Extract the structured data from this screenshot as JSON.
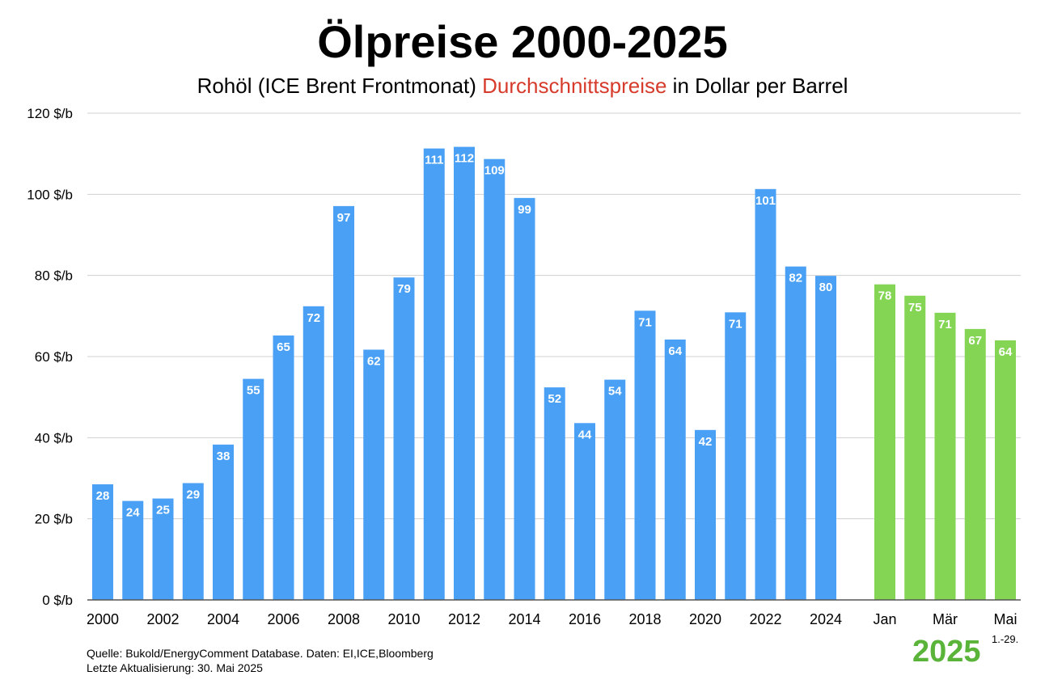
{
  "title": "Ölpreise 2000-2025",
  "subtitle": {
    "part1": "Rohöl (ICE Brent Frontmonat) ",
    "highlight": "Durchschnittspreise",
    "part2": " in Dollar per Barrel"
  },
  "source": {
    "line1": "Quelle: Bukold/EnergyComment Database. Daten: EI,ICE,Bloomberg",
    "line2": "Letzte Aktualisierung: 30. Mai 2025"
  },
  "year_label": "2025",
  "footnote": "1.-29.",
  "colors": {
    "annual": "#4aa0f5",
    "monthly": "#84d553",
    "highlight": "#d63b2b",
    "year_label": "#5ab43a",
    "grid": "#d0d0d0"
  },
  "chart_data": {
    "type": "bar",
    "title": "Ölpreise 2000-2025",
    "xlabel": "",
    "ylabel": "",
    "ylim": [
      0,
      120
    ],
    "yticks": [
      0,
      20,
      40,
      60,
      80,
      100,
      120
    ],
    "ytick_suffix": " $/b",
    "grid": true,
    "series": [
      {
        "name": "",
        "color": "#4aa0f5",
        "categories": [
          "2000",
          "2001",
          "2002",
          "2003",
          "2004",
          "2005",
          "2006",
          "2007",
          "2008",
          "2009",
          "2010",
          "2011",
          "2012",
          "2013",
          "2014",
          "2015",
          "2016",
          "2017",
          "2018",
          "2019",
          "2020",
          "2021",
          "2022",
          "2023",
          "2024"
        ],
        "values": [
          28.5,
          24.4,
          25,
          28.8,
          38.3,
          54.5,
          65.2,
          72.4,
          97.1,
          61.7,
          79.5,
          111.3,
          111.7,
          108.7,
          99.1,
          52.4,
          43.6,
          54.3,
          71.3,
          64.2,
          41.9,
          70.9,
          101.3,
          82.2,
          79.9
        ],
        "labels": [
          "28",
          "24",
          "25",
          "29",
          "38",
          "55",
          "65",
          "72",
          "97",
          "62",
          "79",
          "111",
          "112",
          "109",
          "99",
          "52",
          "44",
          "54",
          "71",
          "64",
          "42",
          "71",
          "101",
          "82",
          "80"
        ],
        "tick_labels": [
          "2000",
          "",
          "2002",
          "",
          "2004",
          "",
          "2006",
          "",
          "2008",
          "",
          "2010",
          "",
          "2012",
          "",
          "2014",
          "",
          "2016",
          "",
          "2018",
          "",
          "2020",
          "",
          "2022",
          "",
          "2024"
        ]
      },
      {
        "name": "",
        "color": "#84d553",
        "categories": [
          "Jan",
          "Feb",
          "Mär",
          "Apr",
          "Mai"
        ],
        "values": [
          77.8,
          75,
          70.8,
          66.8,
          64
        ],
        "labels": [
          "78",
          "75",
          "71",
          "67",
          "64"
        ],
        "tick_labels": [
          "Jan",
          "",
          "Mär",
          "",
          "Mai"
        ]
      }
    ]
  }
}
